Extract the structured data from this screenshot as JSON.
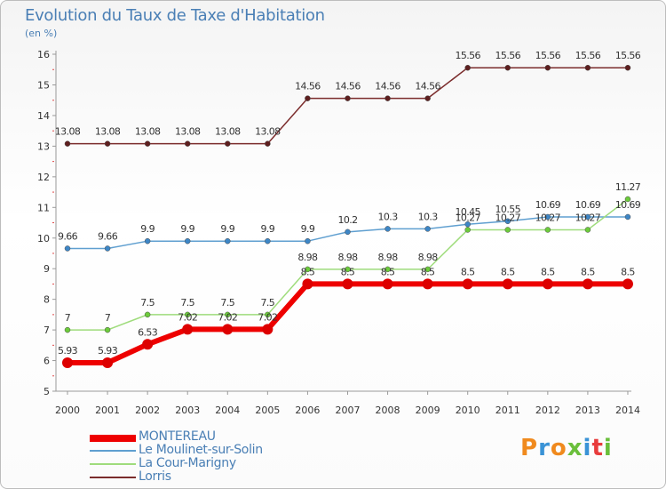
{
  "title": "Evolution du Taux de Taxe d'Habitation",
  "subtitle": "(en %)",
  "logo": {
    "text": "Proxiti",
    "colors": [
      "#f08a1e",
      "#3a93d6",
      "#f08a1e",
      "#6abf3b",
      "#3a93d6",
      "#e83c3c",
      "#6abf3b"
    ]
  },
  "chart_data": {
    "type": "line",
    "x": [
      "2000",
      "2001",
      "2002",
      "2003",
      "2004",
      "2005",
      "2006",
      "2007",
      "2008",
      "2009",
      "2010",
      "2011",
      "2012",
      "2013",
      "2014"
    ],
    "ylim": [
      5,
      16
    ],
    "yticks": [
      5,
      6,
      7,
      8,
      9,
      10,
      11,
      12,
      13,
      14,
      15,
      16
    ],
    "grid": false,
    "legend_position": "bottom",
    "series": [
      {
        "name": "Lorris",
        "color": "#7b2c2c",
        "marker": "#5e1f1f",
        "values": [
          13.08,
          13.08,
          13.08,
          13.08,
          13.08,
          13.08,
          14.56,
          14.56,
          14.56,
          14.56,
          15.56,
          15.56,
          15.56,
          15.56,
          15.56
        ],
        "labels": [
          "13.08",
          "13.08",
          "13.08",
          "13.08",
          "13.08",
          "13.08",
          "14.56",
          "14.56",
          "14.56",
          "14.56",
          "15.56",
          "15.56",
          "15.56",
          "15.56",
          "15.56"
        ]
      },
      {
        "name": "Le Moulinet-sur-Solin",
        "color": "#5f9fd0",
        "marker": "#3d86c6",
        "values": [
          9.66,
          9.66,
          9.9,
          9.9,
          9.9,
          9.9,
          9.9,
          10.2,
          10.3,
          10.3,
          10.45,
          10.55,
          10.69,
          10.69,
          10.69
        ],
        "labels": [
          "9.66",
          "9.66",
          "9.9",
          "9.9",
          "9.9",
          "9.9",
          "9.9",
          "10.2",
          "10.3",
          "10.3",
          "10.45",
          "10.55",
          "10.69",
          "10.69",
          "10.69"
        ]
      },
      {
        "name": "La Cour-Marigny",
        "color": "#9fdc7c",
        "marker": "#6ccb3b",
        "values": [
          7,
          7,
          7.5,
          7.5,
          7.5,
          7.5,
          8.98,
          8.98,
          8.98,
          8.98,
          10.27,
          10.27,
          10.27,
          10.27,
          11.27
        ],
        "labels": [
          "7",
          "7",
          "7.5",
          "7.5",
          "7.5",
          "7.5",
          "8.98",
          "8.98",
          "8.98",
          "8.98",
          "10.27",
          "10.27",
          "10.27",
          "10.27",
          "11.27"
        ]
      },
      {
        "name": "MONTEREAU",
        "color": "#ee0000",
        "marker": "#dd0000",
        "values": [
          5.93,
          5.93,
          6.53,
          7.02,
          7.02,
          7.02,
          8.5,
          8.5,
          8.5,
          8.5,
          8.5,
          8.5,
          8.5,
          8.5,
          8.5
        ],
        "labels": [
          "5.93",
          "5.93",
          "6.53",
          "7.02",
          "7.02",
          "7.02",
          "8.5",
          "8.5",
          "8.5",
          "8.5",
          "8.5",
          "8.5",
          "8.5",
          "8.5",
          "8.5"
        ]
      }
    ]
  }
}
